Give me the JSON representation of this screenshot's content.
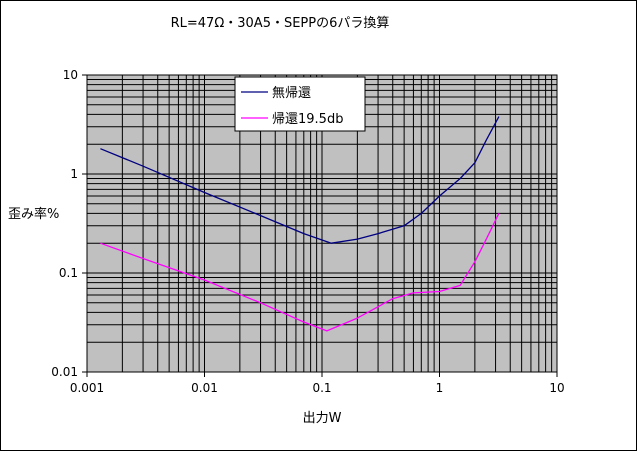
{
  "chart_data": {
    "type": "line",
    "title": "RL=47Ω・30A5・SEPPの6パラ換算",
    "xlabel": "出力W",
    "ylabel": "歪み率%",
    "x_scale": "log",
    "y_scale": "log",
    "xlim": [
      0.001,
      10
    ],
    "ylim": [
      0.01,
      10
    ],
    "x_ticks": [
      "0.001",
      "0.01",
      "0.1",
      "1",
      "10"
    ],
    "y_ticks": [
      "0.01",
      "0.1",
      "1",
      "10"
    ],
    "grid": true,
    "legend_position": "top-center",
    "plot_background": "#c0c0c0",
    "series": [
      {
        "name": "無帰還",
        "color": "#000080",
        "points": [
          [
            0.0013,
            1.8
          ],
          [
            0.003,
            1.2
          ],
          [
            0.01,
            0.65
          ],
          [
            0.03,
            0.38
          ],
          [
            0.07,
            0.25
          ],
          [
            0.12,
            0.2
          ],
          [
            0.2,
            0.22
          ],
          [
            0.3,
            0.25
          ],
          [
            0.5,
            0.3
          ],
          [
            0.7,
            0.4
          ],
          [
            1.0,
            0.6
          ],
          [
            1.5,
            0.9
          ],
          [
            2.0,
            1.3
          ],
          [
            2.5,
            2.2
          ],
          [
            3.2,
            3.8
          ]
        ]
      },
      {
        "name": "帰還19.5db",
        "color": "#ff00ff",
        "points": [
          [
            0.0013,
            0.2
          ],
          [
            0.003,
            0.14
          ],
          [
            0.01,
            0.085
          ],
          [
            0.03,
            0.05
          ],
          [
            0.07,
            0.032
          ],
          [
            0.11,
            0.026
          ],
          [
            0.2,
            0.035
          ],
          [
            0.4,
            0.055
          ],
          [
            0.6,
            0.063
          ],
          [
            1.0,
            0.065
          ],
          [
            1.5,
            0.075
          ],
          [
            2.0,
            0.13
          ],
          [
            2.5,
            0.22
          ],
          [
            3.2,
            0.4
          ]
        ]
      }
    ]
  }
}
